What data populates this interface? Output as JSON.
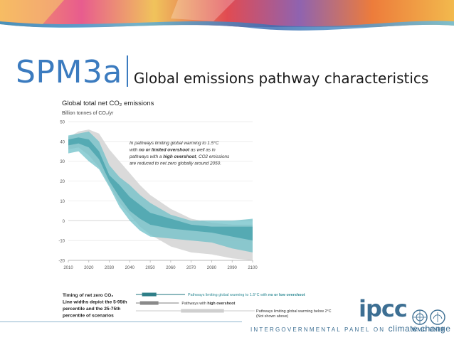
{
  "slide": {
    "code": "SPM3a",
    "subtitle": "Global emissions pathway characteristics"
  },
  "chart_data": {
    "type": "area",
    "title": "Global total net CO₂ emissions",
    "ylabel": "Billion tonnes of CO₂/yr",
    "xlabel": "",
    "xlim": [
      2010,
      2100
    ],
    "ylim": [
      -20,
      50
    ],
    "x_ticks": [
      2010,
      2020,
      2030,
      2040,
      2050,
      2060,
      2070,
      2080,
      2090,
      2100
    ],
    "y_ticks": [
      -20,
      -10,
      0,
      10,
      20,
      30,
      40,
      50
    ],
    "x": [
      2010,
      2015,
      2020,
      2025,
      2030,
      2035,
      2040,
      2045,
      2050,
      2060,
      2070,
      2080,
      2090,
      2100
    ],
    "series": [
      {
        "name": "Pathways limiting global warming to 1.5°C with no or low overshoot",
        "color": "#6fc0c8",
        "role": "range_5_95",
        "upper": [
          43,
          44,
          45,
          40,
          28,
          22,
          18,
          13,
          9,
          3,
          0,
          0,
          0,
          1
        ],
        "lower": [
          34,
          35,
          30,
          26,
          17,
          7,
          0,
          -5,
          -8,
          -9,
          -10,
          -11,
          -14,
          -16
        ]
      },
      {
        "name": "Pathways limiting global warming to 1.5°C with no or low overshoot",
        "color": "#3f9ea8",
        "role": "range_25_75",
        "upper": [
          41,
          42,
          41,
          35,
          23,
          18,
          12,
          8,
          4,
          1,
          -2,
          -3,
          -3,
          -3
        ],
        "lower": [
          38,
          39,
          37,
          31,
          20,
          12,
          5,
          1,
          -2,
          -4,
          -5,
          -6,
          -8,
          -10
        ]
      },
      {
        "name": "Pathways with high overshoot",
        "color": "#d6d6d6",
        "role": "range_5_95",
        "upper": [
          42,
          45,
          46,
          44,
          36,
          30,
          24,
          18,
          13,
          6,
          1,
          -1,
          -2,
          -2
        ],
        "lower": [
          36,
          37,
          33,
          27,
          18,
          9,
          3,
          -3,
          -7,
          -13,
          -16,
          -17,
          -19,
          -20
        ]
      }
    ],
    "annotation": {
      "lines": [
        [
          {
            "t": "In pathways limiting global warming to 1.5°C",
            "h": false
          }
        ],
        [
          {
            "t": "with ",
            "h": false
          },
          {
            "t": "no or limited overshoot",
            "h": "teal"
          },
          {
            "t": " as well as in",
            "h": false
          }
        ],
        [
          {
            "t": "pathways with a ",
            "h": false
          },
          {
            "t": "high overshoot",
            "h": "gray"
          },
          {
            "t": ", CO2 emissions",
            "h": false
          }
        ],
        [
          {
            "t": "are reduced to net zero globally around 2050.",
            "h": false
          }
        ]
      ]
    },
    "timing": {
      "title_lines": [
        "Timing of net zero CO₂",
        "Line widths depict the 5-95th",
        "percentile and the 25-75th",
        "percentile of scenarios"
      ],
      "bars": [
        {
          "label_parts": [
            {
              "t": "Pathways limiting global warming to 1.5°C with ",
              "bold": false
            },
            {
              "t": "no or low overshoot",
              "bold": true
            }
          ],
          "range_5_95": [
            2043,
            2067
          ],
          "range_25_75": [
            2046,
            2053
          ],
          "color": "#2f7f88"
        },
        {
          "label_parts": [
            {
              "t": "Pathways with ",
              "bold": false
            },
            {
              "t": "high overshoot",
              "bold": true
            }
          ],
          "range_5_95": [
            2043,
            2064
          ],
          "range_25_75": [
            2045,
            2054
          ],
          "color": "#8a8a8a"
        },
        {
          "label_parts": [
            {
              "t": "Pathways limiting global warming below 2°C",
              "bold": false
            }
          ],
          "sub_label": "(Not shown above)",
          "range_5_95": [
            2043,
            2101
          ],
          "range_25_75": [
            2065,
            2086
          ],
          "color": "#cfcfcf"
        }
      ]
    }
  },
  "footer": {
    "logo_text": "ipcc",
    "panel_prefix": "INTERGOVERNMENTAL PANEL ON",
    "panel_name": "climate change",
    "org1": "WMO",
    "org2": "UNEP"
  }
}
